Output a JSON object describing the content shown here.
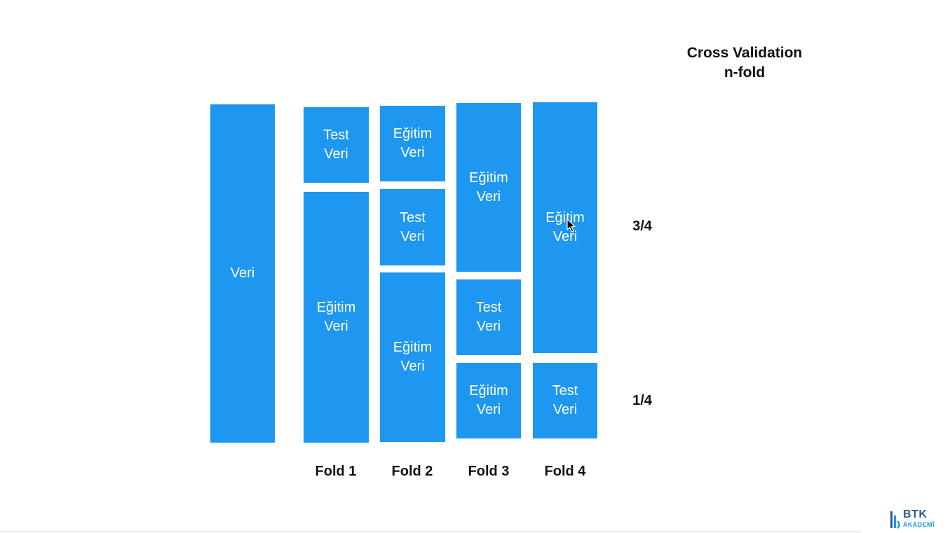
{
  "title": {
    "line1": "Cross Validation",
    "line2": "n-fold"
  },
  "veri": {
    "label": "Veri"
  },
  "folds": [
    {
      "label": "Fold 1",
      "blocks": [
        {
          "label": "Test\nVeri",
          "role": "test"
        },
        {
          "label": "Eğitim\nVeri",
          "role": "egitim"
        }
      ]
    },
    {
      "label": "Fold 2",
      "blocks": [
        {
          "label": "Eğitim\nVeri",
          "role": "egitim"
        },
        {
          "label": "Test\nVeri",
          "role": "test"
        },
        {
          "label": "Eğitim\nVeri",
          "role": "egitim"
        }
      ]
    },
    {
      "label": "Fold 3",
      "blocks": [
        {
          "label": "Eğitim\nVeri",
          "role": "egitim"
        },
        {
          "label": "Test\nVeri",
          "role": "test"
        },
        {
          "label": "Eğitim\nVeri",
          "role": "egitim"
        }
      ]
    },
    {
      "label": "Fold 4",
      "blocks": [
        {
          "label": "Eğitim\nVeri",
          "role": "egitim"
        },
        {
          "label": "Test\nVeri",
          "role": "test"
        }
      ]
    }
  ],
  "fractions": {
    "train": "3/4",
    "test": "1/4"
  },
  "logo": {
    "brand": "BTK",
    "sub": "AKADEMİ"
  },
  "colors": {
    "block": "#1e97f0",
    "text": "#111111",
    "logo_dark": "#2b5f8a",
    "logo_light": "#1e97f0"
  }
}
